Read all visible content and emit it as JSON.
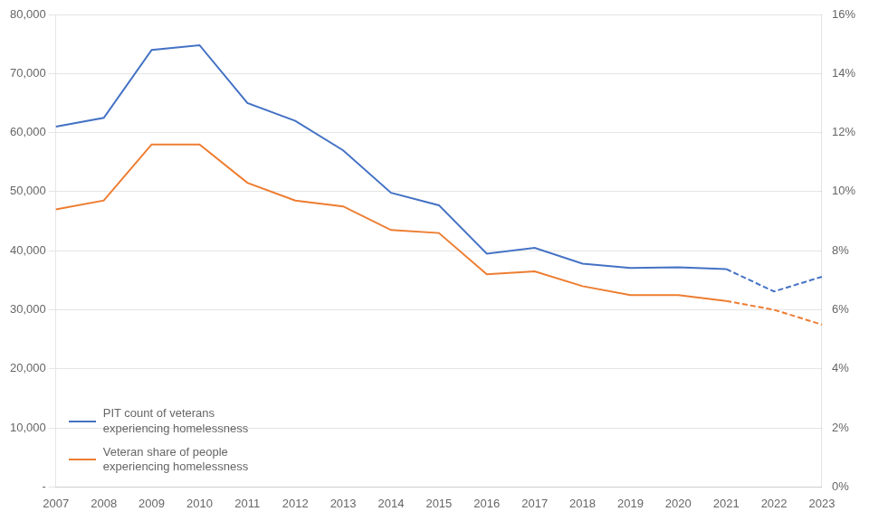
{
  "chart_data": {
    "type": "line",
    "categories": [
      "2007",
      "2008",
      "2009",
      "2010",
      "2011",
      "2012",
      "2013",
      "2014",
      "2015",
      "2016",
      "2017",
      "2018",
      "2019",
      "2020",
      "2021",
      "2022",
      "2023"
    ],
    "series": [
      {
        "name": "PIT count of veterans\nexperiencing homelessness",
        "color": "#4472C4",
        "line_style": "solid",
        "values": [
          61000,
          62500,
          74000,
          74800,
          65000,
          62000,
          57000,
          49800,
          47700,
          39500,
          40500,
          37800,
          37100,
          37200,
          36900,
          null,
          null
        ]
      },
      {
        "color": "#4472C4",
        "line_style": "dashed",
        "values": [
          null,
          null,
          null,
          null,
          null,
          null,
          null,
          null,
          null,
          null,
          null,
          null,
          null,
          null,
          36900,
          33100,
          35600
        ]
      },
      {
        "name": "Veteran share of people\nexperiencing homelessness",
        "color": "#ED7D31",
        "line_style": "solid",
        "axis": "y2",
        "values": [
          0.094,
          0.097,
          0.116,
          0.116,
          0.103,
          0.097,
          0.095,
          0.087,
          0.086,
          0.072,
          0.073,
          0.068,
          0.065,
          0.065,
          0.063,
          null,
          null
        ]
      },
      {
        "color": "#ED7D31",
        "line_style": "dashed",
        "axis": "y2",
        "values": [
          null,
          null,
          null,
          null,
          null,
          null,
          null,
          null,
          null,
          null,
          null,
          null,
          null,
          null,
          0.063,
          0.06,
          0.055
        ]
      }
    ],
    "ylim": [
      0,
      80000
    ],
    "yticks": [
      {
        "value": 0,
        "label": "-"
      },
      {
        "value": 10000,
        "label": "10,000"
      },
      {
        "value": 20000,
        "label": "20,000"
      },
      {
        "value": 30000,
        "label": "30,000"
      },
      {
        "value": 40000,
        "label": "40,000"
      },
      {
        "value": 50000,
        "label": "50,000"
      },
      {
        "value": 60000,
        "label": "60,000"
      },
      {
        "value": 70000,
        "label": "70,000"
      },
      {
        "value": 80000,
        "label": "80,000"
      }
    ],
    "y2lim": [
      0,
      0.16
    ],
    "y2ticks": [
      {
        "value": 0,
        "label": "0%"
      },
      {
        "value": 0.02,
        "label": "2%"
      },
      {
        "value": 0.04,
        "label": "4%"
      },
      {
        "value": 0.06,
        "label": "6%"
      },
      {
        "value": 0.08,
        "label": "8%"
      },
      {
        "value": 0.1,
        "label": "10%"
      },
      {
        "value": 0.12,
        "label": "12%"
      },
      {
        "value": 0.14,
        "label": "14%"
      },
      {
        "value": 0.16,
        "label": "16%"
      }
    ],
    "grid": true,
    "legend": "lower left"
  }
}
